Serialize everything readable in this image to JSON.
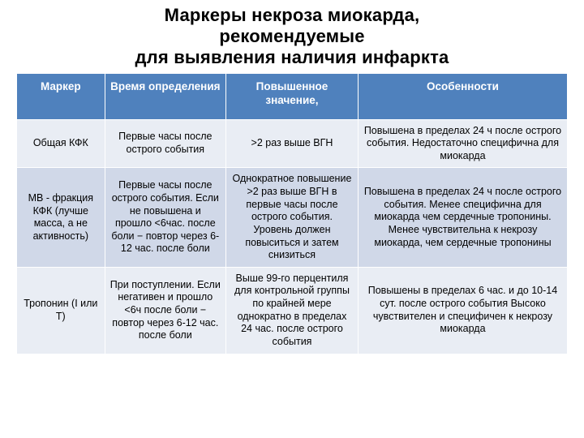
{
  "title_lines": [
    "Маркеры некроза миокарда,",
    "рекомендуемые",
    "для выявления наличия инфаркта"
  ],
  "table": {
    "columns": [
      {
        "label": "Маркер",
        "width": "16%"
      },
      {
        "label": "Время определения",
        "width": "22%"
      },
      {
        "label": "Повышенное значение,",
        "width": "24%"
      },
      {
        "label": "Особенности",
        "width": "38%"
      }
    ],
    "header_bg": "#4f81bd",
    "header_fg": "#ffffff",
    "band_a_bg": "#e9edf4",
    "band_b_bg": "#d0d8e8",
    "rows": [
      {
        "band": "a",
        "cells": [
          "Общая КФК",
          "Первые часы после острого события",
          ">2 раз выше ВГН",
          "Повышена в пределах 24 ч после острого события. Недостаточно специфична для миокарда"
        ]
      },
      {
        "band": "b",
        "cells": [
          "МВ - фракция КФК (лучше масса, а не активность)",
          "Первые часы после острого события. Если не повышена и прошло <6час. после боли − повтор через 6-12 час. после боли",
          "Однократное повышение >2 раз выше ВГН в первые часы после острого события. Уровень должен повыситься и затем снизиться",
          "Повышена в пределах 24 ч после острого события. Менее специфична для миокарда чем сердечные тропонины. Менее чувствительна к некрозу миокарда, чем сердечные тропонины"
        ]
      },
      {
        "band": "a",
        "cells": [
          "Тропонин (I или T)",
          "При поступлении. Если негативен и прошло <6ч после боли − повтор через 6-12 час. после боли",
          "Выше 99-го перцентиля для контрольной группы по крайней мере однократно в пределах 24 час. после острого события",
          "Повышены в пределах 6 час. и до 10-14 сут. после острого события\nВысоко чувствителен и специфичен к некрозу миокарда"
        ]
      }
    ]
  },
  "font_sizes": {
    "title": 22,
    "header": 13.5,
    "cell": 12.5
  }
}
